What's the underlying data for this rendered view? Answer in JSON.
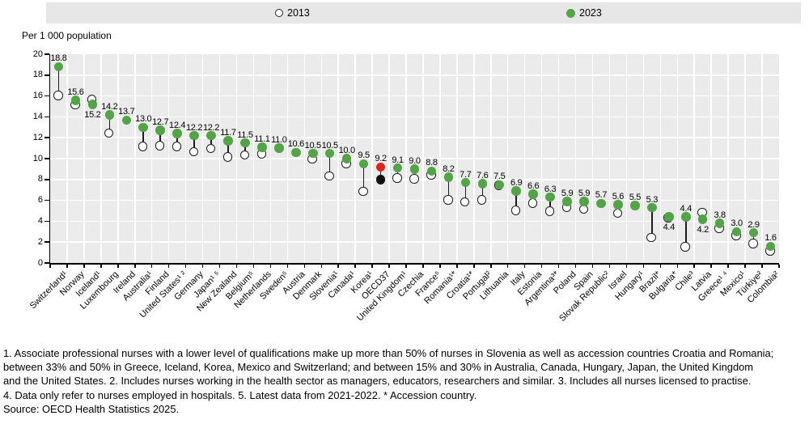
{
  "legend": {
    "y2013": "2013",
    "y2023": "2023"
  },
  "axis_title": "Per 1 000 population",
  "colors": {
    "green_2023": "#52a447",
    "red_oecd_2023": "#df2419",
    "black_oecd_2013": "#111111",
    "open_circle_ring": "#1c1c1c",
    "panel_bg": "#ebebeb",
    "legend_bg": "#e7e7e7"
  },
  "footnotes": {
    "lines": [
      "1. Associate professional nurses with a lower level of qualifications make up more than 50% of nurses in Slovenia as well as accession countries Croatia and Romania;",
      "between 33% and 50% in Greece, Iceland, Korea, Mexico and Switzerland; and between 15% and 30% in Australia, Canada, Hungary, Japan, the United Kingdom",
      "and the United States. 2. Includes nurses working in the health sector as managers, educators, researchers and similar. 3. Includes all nurses licensed to practise.",
      "4. Data only refer to nurses employed in hospitals. 5. Latest data from 2021-2022. * Accession country.",
      "Source: OECD Health Statistics 2025."
    ]
  },
  "chart_data": {
    "type": "scatter",
    "title": "",
    "ylabel": "Per 1 000 population",
    "ylim": [
      0,
      20
    ],
    "ytick_step": 2,
    "grid": true,
    "legend_position": "top",
    "series": [
      "2013",
      "2023"
    ],
    "points": [
      {
        "label": "Switzerland¹",
        "y2023": 18.8,
        "y2013": 16.0,
        "value_label": "18.8",
        "label_pos": "above",
        "highlight": false
      },
      {
        "label": "Norway",
        "y2023": 15.6,
        "y2013": 15.1,
        "value_label": "15.6",
        "label_pos": "above",
        "highlight": false
      },
      {
        "label": "Iceland¹",
        "y2023": 15.2,
        "y2013": 15.6,
        "value_label": "15.2",
        "label_pos": "below",
        "highlight": false
      },
      {
        "label": "Luxembourg",
        "y2023": 14.2,
        "y2013": 12.4,
        "value_label": "14.2",
        "label_pos": "above",
        "highlight": false
      },
      {
        "label": "Ireland",
        "y2023": 13.7,
        "y2013": null,
        "value_label": "13.7",
        "label_pos": "above",
        "highlight": false
      },
      {
        "label": "Australia¹",
        "y2023": 13.0,
        "y2013": 11.1,
        "value_label": "13.0",
        "label_pos": "above",
        "highlight": false
      },
      {
        "label": "Finland",
        "y2023": 12.7,
        "y2013": 11.2,
        "value_label": "12.7",
        "label_pos": "above",
        "highlight": false
      },
      {
        "label": "United States¹ ²",
        "y2023": 12.4,
        "y2013": 11.1,
        "value_label": "12.4",
        "label_pos": "above",
        "highlight": false
      },
      {
        "label": "Germany",
        "y2023": 12.2,
        "y2013": 10.6,
        "value_label": "12.2",
        "label_pos": "above",
        "highlight": false
      },
      {
        "label": "Japan¹ ⁵",
        "y2023": 12.2,
        "y2013": 10.9,
        "value_label": "12.2",
        "label_pos": "above",
        "highlight": false
      },
      {
        "label": "New Zealand",
        "y2023": 11.7,
        "y2013": 10.1,
        "value_label": "11.7",
        "label_pos": "above",
        "highlight": false
      },
      {
        "label": "Belgium⁵",
        "y2023": 11.5,
        "y2013": 10.3,
        "value_label": "11.5",
        "label_pos": "above",
        "highlight": false
      },
      {
        "label": "Netherlands",
        "y2023": 11.1,
        "y2013": 10.4,
        "value_label": "11.1",
        "label_pos": "above",
        "highlight": false
      },
      {
        "label": "Sweden⁵",
        "y2023": 11.0,
        "y2013": null,
        "value_label": "11.0",
        "label_pos": "above",
        "highlight": false
      },
      {
        "label": "Austria",
        "y2023": 10.6,
        "y2013": null,
        "value_label": "10.6",
        "label_pos": "above",
        "highlight": false
      },
      {
        "label": "Denmark",
        "y2023": 10.5,
        "y2013": 9.9,
        "value_label": "10.5",
        "label_pos": "above",
        "highlight": false
      },
      {
        "label": "Slovenia¹",
        "y2023": 10.5,
        "y2013": 8.3,
        "value_label": "10.5",
        "label_pos": "above",
        "highlight": false
      },
      {
        "label": "Canada¹",
        "y2023": 10.0,
        "y2013": 9.5,
        "value_label": "10.0",
        "label_pos": "above",
        "highlight": false
      },
      {
        "label": "Korea¹",
        "y2023": 9.5,
        "y2013": 6.8,
        "value_label": "9.5",
        "label_pos": "above",
        "highlight": false
      },
      {
        "label": "OECD37",
        "y2023": 9.2,
        "y2013": 8.0,
        "value_label": "9.2",
        "label_pos": "above",
        "highlight": true
      },
      {
        "label": "United Kingdom¹",
        "y2023": 9.1,
        "y2013": 8.1,
        "value_label": "9.1",
        "label_pos": "above",
        "highlight": false
      },
      {
        "label": "Czechia",
        "y2023": 9.0,
        "y2013": 8.0,
        "value_label": "9.0",
        "label_pos": "above",
        "highlight": false
      },
      {
        "label": "France⁵",
        "y2023": 8.8,
        "y2013": 8.4,
        "value_label": "8.8",
        "label_pos": "above",
        "highlight": false
      },
      {
        "label": "Romania¹*",
        "y2023": 8.2,
        "y2013": 6.0,
        "value_label": "8.2",
        "label_pos": "above",
        "highlight": false
      },
      {
        "label": "Croatia¹*",
        "y2023": 7.7,
        "y2013": 5.8,
        "value_label": "7.7",
        "label_pos": "above",
        "highlight": false
      },
      {
        "label": "Portugal²",
        "y2023": 7.6,
        "y2013": 6.0,
        "value_label": "7.6",
        "label_pos": "above",
        "highlight": false
      },
      {
        "label": "Lithuania",
        "y2023": 7.5,
        "y2013": 7.4,
        "value_label": "7.5",
        "label_pos": "above",
        "highlight": false
      },
      {
        "label": "Italy",
        "y2023": 6.9,
        "y2013": 5.0,
        "value_label": "6.9",
        "label_pos": "above",
        "highlight": false
      },
      {
        "label": "Estonia",
        "y2023": 6.6,
        "y2013": 5.7,
        "value_label": "6.6",
        "label_pos": "above",
        "highlight": false
      },
      {
        "label": "Argentina³*",
        "y2023": 6.3,
        "y2013": 4.9,
        "value_label": "6.3",
        "label_pos": "above",
        "highlight": false
      },
      {
        "label": "Poland",
        "y2023": 5.9,
        "y2013": 5.3,
        "value_label": "5.9",
        "label_pos": "above",
        "highlight": false
      },
      {
        "label": "Spain",
        "y2023": 5.9,
        "y2013": 5.1,
        "value_label": "5.9",
        "label_pos": "above",
        "highlight": false
      },
      {
        "label": "Slovak Republic²",
        "y2023": 5.7,
        "y2013": null,
        "value_label": "5.7",
        "label_pos": "above",
        "highlight": false
      },
      {
        "label": "Israel",
        "y2023": 5.6,
        "y2013": 4.7,
        "value_label": "5.6",
        "label_pos": "above",
        "highlight": false
      },
      {
        "label": "Hungary¹",
        "y2023": 5.5,
        "y2013": null,
        "value_label": "5.5",
        "label_pos": "above",
        "highlight": false
      },
      {
        "label": "Brazil*",
        "y2023": 5.3,
        "y2013": 2.4,
        "value_label": "5.3",
        "label_pos": "above",
        "highlight": false
      },
      {
        "label": "Bulgaria*",
        "y2023": 4.4,
        "y2013": 4.3,
        "value_label": "4.4",
        "label_pos": "below",
        "highlight": false
      },
      {
        "label": "Chile³",
        "y2023": 4.4,
        "y2013": 1.5,
        "value_label": "4.4",
        "label_pos": "above",
        "highlight": false
      },
      {
        "label": "Latvia",
        "y2023": 4.2,
        "y2013": 4.8,
        "value_label": "4.2",
        "label_pos": "below",
        "highlight": false
      },
      {
        "label": "Greece¹ ⁴",
        "y2023": 3.8,
        "y2013": 3.3,
        "value_label": "3.8",
        "label_pos": "above",
        "highlight": false
      },
      {
        "label": "Mexico¹",
        "y2023": 3.0,
        "y2013": 2.6,
        "value_label": "3.0",
        "label_pos": "above",
        "highlight": false
      },
      {
        "label": "Türkiye²",
        "y2023": 2.9,
        "y2013": 1.8,
        "value_label": "2.9",
        "label_pos": "above",
        "highlight": false
      },
      {
        "label": "Colombia²",
        "y2023": 1.6,
        "y2013": 1.1,
        "value_label": "1.6",
        "label_pos": "above",
        "highlight": false
      }
    ]
  }
}
